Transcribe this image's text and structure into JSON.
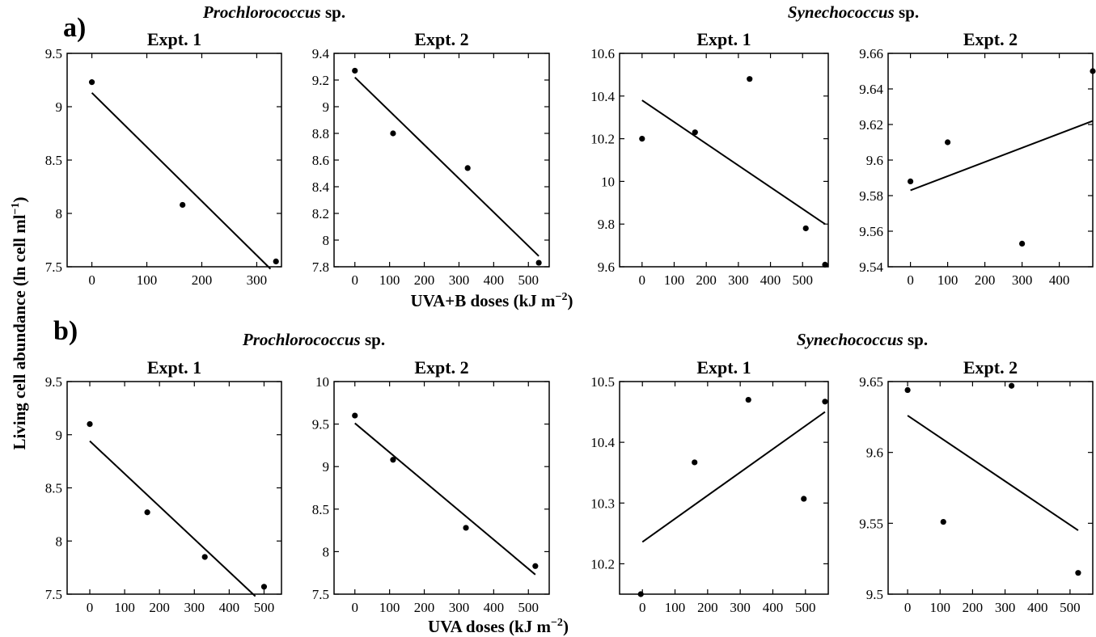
{
  "figure": {
    "y_axis_label": "Living cell abundance (ln cell ml",
    "y_axis_label_sup": "−1",
    "y_axis_label_end": ")"
  },
  "rows": [
    {
      "letter": "a)",
      "xlabel_text": "UVA+B doses (kJ m",
      "xlabel_sup": "−2",
      "xlabel_end": ")",
      "groups": [
        {
          "species": "Prochlorococcus",
          "suffix": " sp."
        },
        {
          "species": "Synechococcus",
          "suffix": " sp."
        }
      ]
    },
    {
      "letter": "b)",
      "xlabel_text": "UVA doses (kJ m",
      "xlabel_sup": "−2",
      "xlabel_end": ")",
      "groups": [
        {
          "species": "Prochlorococcus",
          "suffix": " sp."
        },
        {
          "species": "Synechococcus",
          "suffix": " sp."
        }
      ]
    }
  ],
  "chart_data": [
    {
      "type": "scatter",
      "row": 0,
      "col": 0,
      "title": "Expt. 1",
      "xlim": [
        -45,
        345
      ],
      "ylim": [
        7.5,
        9.5
      ],
      "xticks": [
        0,
        100,
        200,
        300
      ],
      "yticks": [
        7.5,
        8,
        8.5,
        9,
        9.5
      ],
      "ytick_labels": [
        "7.5",
        "8",
        "8.5",
        "9",
        "9.5"
      ],
      "points": [
        [
          0,
          9.23
        ],
        [
          165,
          8.08
        ],
        [
          335,
          7.55
        ]
      ],
      "fit_line": [
        [
          0,
          9.13
        ],
        [
          325,
          7.48
        ]
      ]
    },
    {
      "type": "scatter",
      "row": 0,
      "col": 1,
      "title": "Expt. 2",
      "xlim": [
        -60,
        560
      ],
      "ylim": [
        7.8,
        9.4
      ],
      "xticks": [
        0,
        100,
        200,
        300,
        400,
        500
      ],
      "yticks": [
        7.8,
        8,
        8.2,
        8.4,
        8.6,
        8.8,
        9,
        9.2,
        9.4
      ],
      "ytick_labels": [
        "7.8",
        "8",
        "8.2",
        "8.4",
        "8.6",
        "8.8",
        "9",
        "9.2",
        "9.4"
      ],
      "points": [
        [
          0,
          9.27
        ],
        [
          110,
          8.8
        ],
        [
          325,
          8.54
        ],
        [
          530,
          7.83
        ]
      ],
      "fit_line": [
        [
          0,
          9.22
        ],
        [
          530,
          7.88
        ]
      ]
    },
    {
      "type": "scatter",
      "row": 0,
      "col": 2,
      "title": "Expt. 1",
      "xlim": [
        -70,
        580
      ],
      "ylim": [
        9.6,
        10.6
      ],
      "xticks": [
        0,
        100,
        200,
        300,
        400,
        500
      ],
      "yticks": [
        9.6,
        9.8,
        10,
        10.2,
        10.4,
        10.6
      ],
      "ytick_labels": [
        "9.6",
        "9.8",
        "10",
        "10.2",
        "10.4",
        "10.6"
      ],
      "points": [
        [
          0,
          10.2
        ],
        [
          165,
          10.23
        ],
        [
          335,
          10.48
        ],
        [
          510,
          9.78
        ],
        [
          570,
          9.61
        ]
      ],
      "fit_line": [
        [
          0,
          10.38
        ],
        [
          570,
          9.8
        ]
      ]
    },
    {
      "type": "scatter",
      "row": 0,
      "col": 3,
      "title": "Expt. 2",
      "xlim": [
        -60,
        490
      ],
      "ylim": [
        9.54,
        9.66
      ],
      "xticks": [
        0,
        100,
        200,
        300,
        400
      ],
      "yticks": [
        9.54,
        9.56,
        9.58,
        9.6,
        9.62,
        9.64,
        9.66
      ],
      "ytick_labels": [
        "9.54",
        "9.56",
        "9.58",
        "9.6",
        "9.62",
        "9.64",
        "9.66"
      ],
      "points": [
        [
          0,
          9.588
        ],
        [
          100,
          9.61
        ],
        [
          300,
          9.553
        ],
        [
          490,
          9.65
        ]
      ],
      "fit_line": [
        [
          0,
          9.583
        ],
        [
          490,
          9.622
        ]
      ]
    },
    {
      "type": "scatter",
      "row": 1,
      "col": 0,
      "title": "Expt. 1",
      "xlim": [
        -65,
        550
      ],
      "ylim": [
        7.5,
        9.5
      ],
      "xticks": [
        0,
        100,
        200,
        300,
        400,
        500
      ],
      "yticks": [
        7.5,
        8,
        8.5,
        9,
        9.5
      ],
      "ytick_labels": [
        "7.5",
        "8",
        "8.5",
        "9",
        "9.5"
      ],
      "points": [
        [
          0,
          9.1
        ],
        [
          165,
          8.27
        ],
        [
          330,
          7.85
        ],
        [
          500,
          7.57
        ]
      ],
      "fit_line": [
        [
          0,
          8.94
        ],
        [
          475,
          7.48
        ]
      ]
    },
    {
      "type": "scatter",
      "row": 1,
      "col": 1,
      "title": "Expt. 2",
      "xlim": [
        -60,
        560
      ],
      "ylim": [
        7.5,
        10
      ],
      "xticks": [
        0,
        100,
        200,
        300,
        400,
        500
      ],
      "yticks": [
        7.5,
        8,
        8.5,
        9,
        9.5,
        10
      ],
      "ytick_labels": [
        "7.5",
        "8",
        "8.5",
        "9",
        "9.5",
        "10"
      ],
      "points": [
        [
          0,
          9.6
        ],
        [
          110,
          9.08
        ],
        [
          320,
          8.28
        ],
        [
          520,
          7.83
        ]
      ],
      "fit_line": [
        [
          0,
          9.51
        ],
        [
          520,
          7.73
        ]
      ]
    },
    {
      "type": "scatter",
      "row": 1,
      "col": 2,
      "title": "Expt. 1",
      "xlim": [
        -70,
        570
      ],
      "ylim": [
        10.15,
        10.5
      ],
      "xticks": [
        0,
        100,
        200,
        300,
        400,
        500
      ],
      "yticks": [
        10.2,
        10.3,
        10.4,
        10.5
      ],
      "ytick_labels": [
        "10.2",
        "10.3",
        "10.4",
        "10.5"
      ],
      "points": [
        [
          -5,
          10.15
        ],
        [
          160,
          10.367
        ],
        [
          325,
          10.47
        ],
        [
          495,
          10.307
        ],
        [
          560,
          10.467
        ]
      ],
      "fit_line": [
        [
          0,
          10.236
        ],
        [
          560,
          10.45
        ]
      ]
    },
    {
      "type": "scatter",
      "row": 1,
      "col": 3,
      "title": "Expt. 2",
      "xlim": [
        -60,
        570
      ],
      "ylim": [
        9.5,
        9.65
      ],
      "xticks": [
        0,
        100,
        200,
        300,
        400,
        500
      ],
      "yticks": [
        9.5,
        9.55,
        9.6,
        9.65
      ],
      "ytick_labels": [
        "9.5",
        "9.55",
        "9.6",
        "9.65"
      ],
      "points": [
        [
          0,
          9.644
        ],
        [
          110,
          9.551
        ],
        [
          320,
          9.647
        ],
        [
          525,
          9.515
        ]
      ],
      "fit_line": [
        [
          0,
          9.626
        ],
        [
          525,
          9.545
        ]
      ]
    }
  ]
}
